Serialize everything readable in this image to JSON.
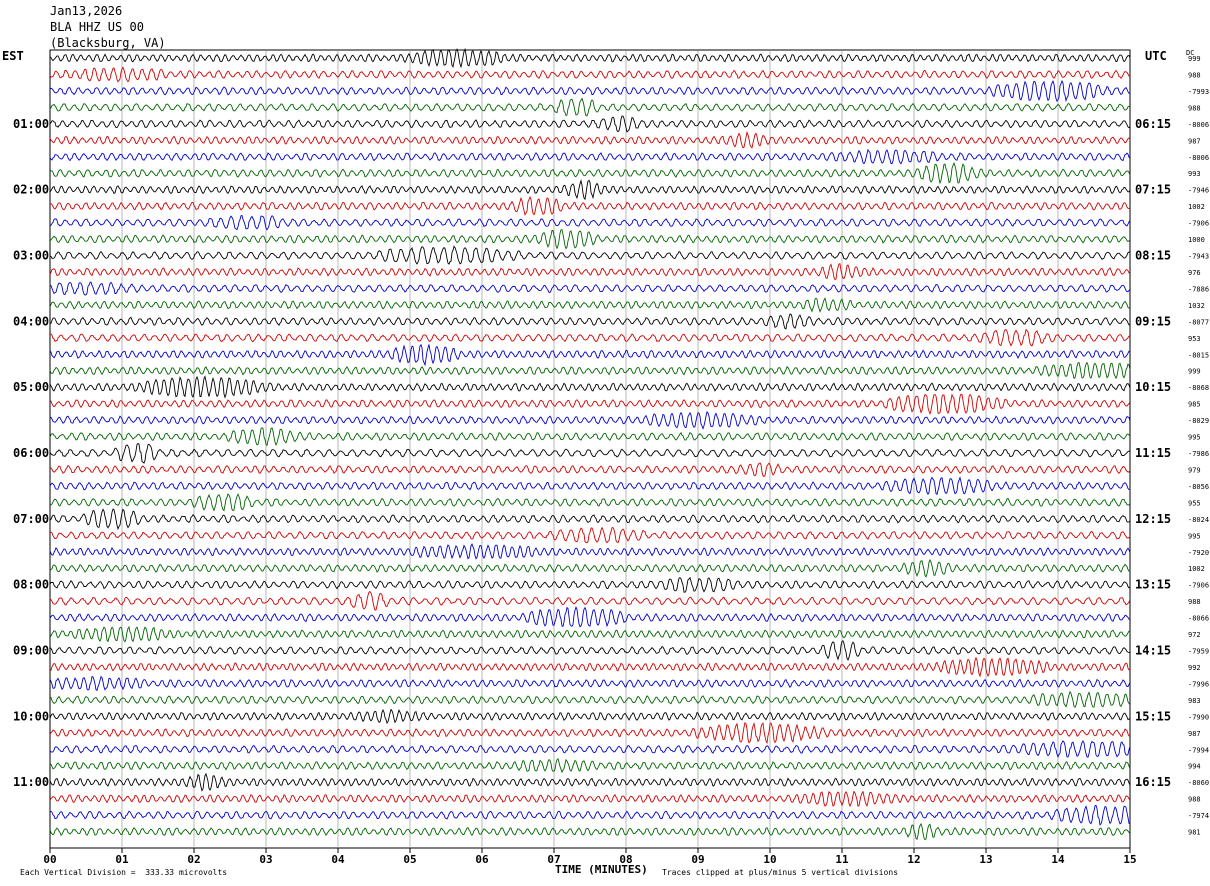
{
  "header": {
    "date": "Jan13,2026",
    "station": "BLA HHZ US 00",
    "location": "(Blacksburg, VA)"
  },
  "corner_labels": {
    "left": "EST",
    "right": "UTC",
    "dc": "DC"
  },
  "footer": {
    "xlabel": "TIME (MINUTES)",
    "scale_note": "Each Vertical Division =  333.33 microvolts",
    "clip_note": "Traces clipped at plus/minus 5 vertical divisions"
  },
  "chart_data": {
    "type": "line",
    "title": "",
    "xlabel": "TIME (MINUTES)",
    "x_ticks": [
      "00",
      "01",
      "02",
      "03",
      "04",
      "05",
      "06",
      "07",
      "08",
      "09",
      "10",
      "11",
      "12",
      "13",
      "14",
      "15"
    ],
    "xlim": [
      0,
      15
    ],
    "trace_colors": [
      "#000000",
      "#d00000",
      "#0000cc",
      "#006400"
    ],
    "left_time_labels": [
      "01:00",
      "02:00",
      "03:00",
      "04:00",
      "05:00",
      "06:00",
      "07:00",
      "08:00",
      "09:00",
      "10:00",
      "11:00"
    ],
    "right_time_labels": [
      "06:15",
      "07:15",
      "08:15",
      "09:15",
      "10:15",
      "11:15",
      "12:15",
      "13:15",
      "14:15",
      "15:15",
      "16:15"
    ],
    "dc_offsets": [
      "999",
      "988",
      "-7993",
      "988",
      "-8006",
      "987",
      "-8006",
      "993",
      "-7946",
      "1002",
      "-7906",
      "1000",
      "-7943",
      "976",
      "-7886",
      "1032",
      "-8077",
      "953",
      "-8015",
      "999",
      "-8068",
      "985",
      "-8029",
      "995",
      "-7986",
      "979",
      "-8056",
      "955",
      "-8024",
      "995",
      "-7920",
      "1002",
      "-7906",
      "988",
      "-8066",
      "972",
      "-7959",
      "992",
      "-7996",
      "983",
      "-7990",
      "987",
      "-7994",
      "994",
      "-8060",
      "988",
      "-7974",
      "981"
    ],
    "clip_divisions": 5
  }
}
